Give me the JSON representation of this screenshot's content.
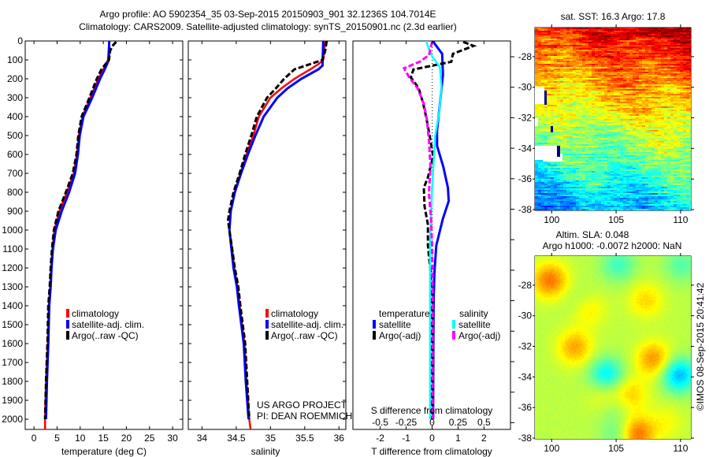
{
  "header": {
    "title_line1": "Argo profile: AO 5902354_35 03-Sep-2015 20150903_901 32.1236S 104.7014E",
    "title_line2": "Climatology: CARS2009. Satellite-adjusted climatology: synTS_20150901.nc (2.3d earlier)"
  },
  "credits": {
    "project": "US ARGO PROJECT",
    "pi": "PI: DEAN ROEMMICH",
    "stamp": "©IMOS 08-Sep-2015 20:41:42"
  },
  "chart_data": [
    {
      "type": "line",
      "id": "temperature",
      "xlabel": "temperature (deg C)",
      "ylabel": "depth",
      "xlim": [
        -1.9,
        32.2
      ],
      "ylim": [
        2054,
        0
      ],
      "xticks": [
        "0",
        "5",
        "10",
        "15",
        "20",
        "25",
        "30"
      ],
      "xtick_values": [
        0,
        5,
        10,
        15,
        20,
        25,
        30
      ],
      "yticks": [
        "0",
        "100",
        "200",
        "300",
        "400",
        "500",
        "600",
        "700",
        "800",
        "900",
        "1000",
        "1100",
        "1200",
        "1300",
        "1400",
        "1500",
        "1600",
        "1700",
        "1800",
        "1900",
        "2000"
      ],
      "ytick_values": [
        0,
        100,
        200,
        300,
        400,
        500,
        600,
        700,
        800,
        900,
        1000,
        1100,
        1200,
        1300,
        1400,
        1500,
        1600,
        1700,
        1800,
        1900,
        2000
      ],
      "legend": [
        "climatology",
        "satellite-adj. clim.",
        "Argo(..raw -QC)"
      ],
      "series": [
        {
          "name": "climatology",
          "color": "#ff0000",
          "depth": [
            0,
            100,
            150,
            200,
            300,
            400,
            500,
            600,
            700,
            800,
            900,
            1000,
            1100,
            1200,
            1300,
            1400,
            1600,
            1800,
            2000,
            2054
          ],
          "values": [
            16.3,
            16.0,
            15.0,
            13.9,
            12.2,
            10.5,
            9.7,
            9.3,
            8.6,
            7.1,
            5.5,
            4.4,
            4.0,
            3.7,
            3.5,
            3.2,
            3.0,
            2.6,
            2.4,
            2.4
          ]
        },
        {
          "name": "satellite-adj. clim.",
          "color": "#0000ff",
          "depth": [
            0,
            100,
            150,
            200,
            300,
            400,
            500,
            600,
            700,
            800,
            900,
            1000,
            1100,
            1200,
            1300,
            1400,
            1600,
            1800,
            2000
          ],
          "values": [
            16.3,
            16.2,
            15.3,
            14.3,
            12.6,
            10.7,
            9.9,
            9.5,
            8.9,
            7.6,
            6.0,
            4.7,
            4.1,
            3.8,
            3.6,
            3.3,
            3.1,
            2.8,
            2.6
          ]
        },
        {
          "name": "Argo(..raw -QC)",
          "color": "#000000",
          "depth": [
            5,
            20,
            50,
            100,
            150,
            200,
            300,
            400,
            500,
            600,
            700,
            800,
            900,
            1000,
            1100,
            1200,
            1300,
            1400,
            1600,
            1800,
            2000
          ],
          "values": [
            17.8,
            17.2,
            16.5,
            16.2,
            14.6,
            13.6,
            12.0,
            10.3,
            9.6,
            9.2,
            8.4,
            6.9,
            5.3,
            4.3,
            3.9,
            3.6,
            3.4,
            3.1,
            2.9,
            2.6,
            2.4
          ]
        }
      ]
    },
    {
      "type": "line",
      "id": "salinity",
      "xlabel": "salinity",
      "xlim": [
        33.8,
        36.1
      ],
      "ylim": [
        2054,
        0
      ],
      "xticks": [
        "34",
        "34.5",
        "35",
        "35.5",
        "36"
      ],
      "xtick_values": [
        34,
        34.5,
        35,
        35.5,
        36
      ],
      "legend": [
        "climatology",
        "satellite-adj. clim.",
        "Argo(..raw -QC)"
      ],
      "series": [
        {
          "name": "climatology",
          "color": "#ff0000",
          "depth": [
            0,
            100,
            120,
            150,
            200,
            250,
            300,
            400,
            500,
            600,
            700,
            800,
            900,
            1000,
            1100,
            1200,
            1300,
            1400,
            1600,
            1800,
            2000,
            2054
          ],
          "values": [
            35.8,
            35.77,
            35.71,
            35.58,
            35.35,
            35.16,
            35.0,
            34.83,
            34.75,
            34.65,
            34.56,
            34.48,
            34.42,
            34.4,
            34.44,
            34.47,
            34.52,
            34.55,
            34.62,
            34.65,
            34.69,
            34.71
          ]
        },
        {
          "name": "satellite-adj. clim.",
          "color": "#0000ff",
          "depth": [
            0,
            130,
            150,
            200,
            250,
            300,
            400,
            500,
            600,
            700,
            800,
            900,
            1000,
            1100,
            1200,
            1300,
            1400,
            1600,
            1800,
            2000
          ],
          "values": [
            35.77,
            35.76,
            35.7,
            35.45,
            35.25,
            35.1,
            34.9,
            34.78,
            34.67,
            34.57,
            34.48,
            34.42,
            34.4,
            34.43,
            34.46,
            34.51,
            34.54,
            34.61,
            34.64,
            34.68
          ]
        },
        {
          "name": "Argo(..raw -QC)",
          "color": "#000000",
          "depth": [
            0,
            50,
            100,
            120,
            150,
            200,
            250,
            300,
            400,
            500,
            600,
            700,
            800,
            900,
            950,
            1000,
            1100,
            1200,
            1300,
            1400,
            1600,
            1800,
            2000
          ],
          "values": [
            35.82,
            35.8,
            35.76,
            35.6,
            35.35,
            35.2,
            35.08,
            34.95,
            34.8,
            34.72,
            34.63,
            34.55,
            34.46,
            34.4,
            34.38,
            34.4,
            34.44,
            34.48,
            34.53,
            34.56,
            34.63,
            34.66,
            34.69
          ]
        }
      ]
    },
    {
      "type": "line",
      "id": "difference",
      "xlabel": "T difference from climatology",
      "xlabel_top": "S difference from climatology",
      "xlim": [
        -3.05,
        3.02
      ],
      "ylim": [
        2054,
        0
      ],
      "xticks": [
        "-2",
        "-1",
        "0",
        "1",
        "2"
      ],
      "xtick_values": [
        -2,
        -1,
        0,
        1,
        2
      ],
      "s_ticks": [
        "-0.5",
        "-0.25",
        "0",
        "0.25",
        "0.5"
      ],
      "s_tick_values": [
        -0.5,
        -0.25,
        0,
        0.25,
        0.5
      ],
      "legend_headers": [
        "temperature",
        "salinity"
      ],
      "legend": [
        "satellite",
        "Argo(-adj)",
        "satellite",
        "Argo(-adj)"
      ],
      "series": [
        {
          "name": "temperature satellite",
          "quantity": "T",
          "color": "#0000ff",
          "depth": [
            0,
            13,
            68,
            179,
            360,
            471,
            554,
            665,
            776,
            846,
            943,
            1082,
            1221,
            1360,
            1600,
            2000
          ],
          "values": [
            0.05,
            0.09,
            0.39,
            0.42,
            0.28,
            0.19,
            0.19,
            0.43,
            0.61,
            0.64,
            0.41,
            0.16,
            0.09,
            0.06,
            0.05,
            0.04
          ]
        },
        {
          "name": "temperature Argo(-adj)",
          "quantity": "T",
          "color": "#000000",
          "depth": [
            5,
            26,
            68,
            110,
            151,
            193,
            249,
            332,
            415,
            526,
            610,
            721,
            776,
            874,
            971,
            1082,
            1221,
            1360,
            1600,
            2000
          ],
          "values": [
            1.2,
            1.6,
            0.8,
            0.74,
            -0.72,
            -0.82,
            -0.52,
            -0.34,
            -0.21,
            -0.06,
            0.04,
            -0.16,
            -0.32,
            -0.29,
            -0.16,
            -0.16,
            -0.06,
            0.0,
            0.0,
            0.0
          ]
        },
        {
          "name": "salinity satellite",
          "quantity": "S",
          "color": "#00ffff",
          "depth": [
            0,
            13,
            82,
            138,
            249,
            388,
            499,
            776,
            1054,
            1360,
            2000
          ],
          "values": [
            -0.05,
            -0.05,
            0.0,
            0.075,
            0.09,
            0.065,
            0.03,
            0.0,
            -0.02,
            -0.02,
            -0.02
          ]
        },
        {
          "name": "salinity Argo(-adj)",
          "quantity": "S",
          "color": "#ff00ff",
          "depth": [
            5,
            75,
            110,
            144,
            193,
            249,
            332,
            415,
            526,
            665,
            804,
            943,
            1082,
            1360,
            2000
          ],
          "values": [
            0.0,
            -0.03,
            -0.12,
            -0.27,
            -0.22,
            -0.14,
            -0.08,
            -0.05,
            -0.03,
            -0.015,
            -0.03,
            -0.01,
            0.0,
            0.005,
            0.005
          ]
        }
      ]
    },
    {
      "type": "heatmap",
      "id": "sst-map",
      "title": "sat. SST: 16.3 Argo: 17.8",
      "xlim": [
        98.7,
        110.8
      ],
      "ylim": [
        -38.05,
        -26.1
      ],
      "xticks": [
        "100",
        "105",
        "110"
      ],
      "xtick_values": [
        100,
        105,
        110
      ],
      "yticks": [
        "-28",
        "-30",
        "-32",
        "-34",
        "-36",
        "-38"
      ],
      "ytick_values": [
        -28,
        -30,
        -32,
        -34,
        -36,
        -38
      ]
    },
    {
      "type": "heatmap",
      "id": "sla-map",
      "title_line1": "Altim. SLA: 0.048",
      "title_line2": "Argo h1000: -0.0072 h2000: NaN",
      "xlim": [
        98.7,
        110.8
      ],
      "ylim": [
        -38.05,
        -26.1
      ],
      "xticks": [
        "100",
        "105",
        "110"
      ],
      "xtick_values": [
        100,
        105,
        110
      ],
      "yticks": [
        "-28",
        "-30",
        "-32",
        "-34",
        "-36",
        "-38"
      ],
      "ytick_values": [
        -28,
        -30,
        -32,
        -34,
        -36,
        -38
      ]
    }
  ]
}
